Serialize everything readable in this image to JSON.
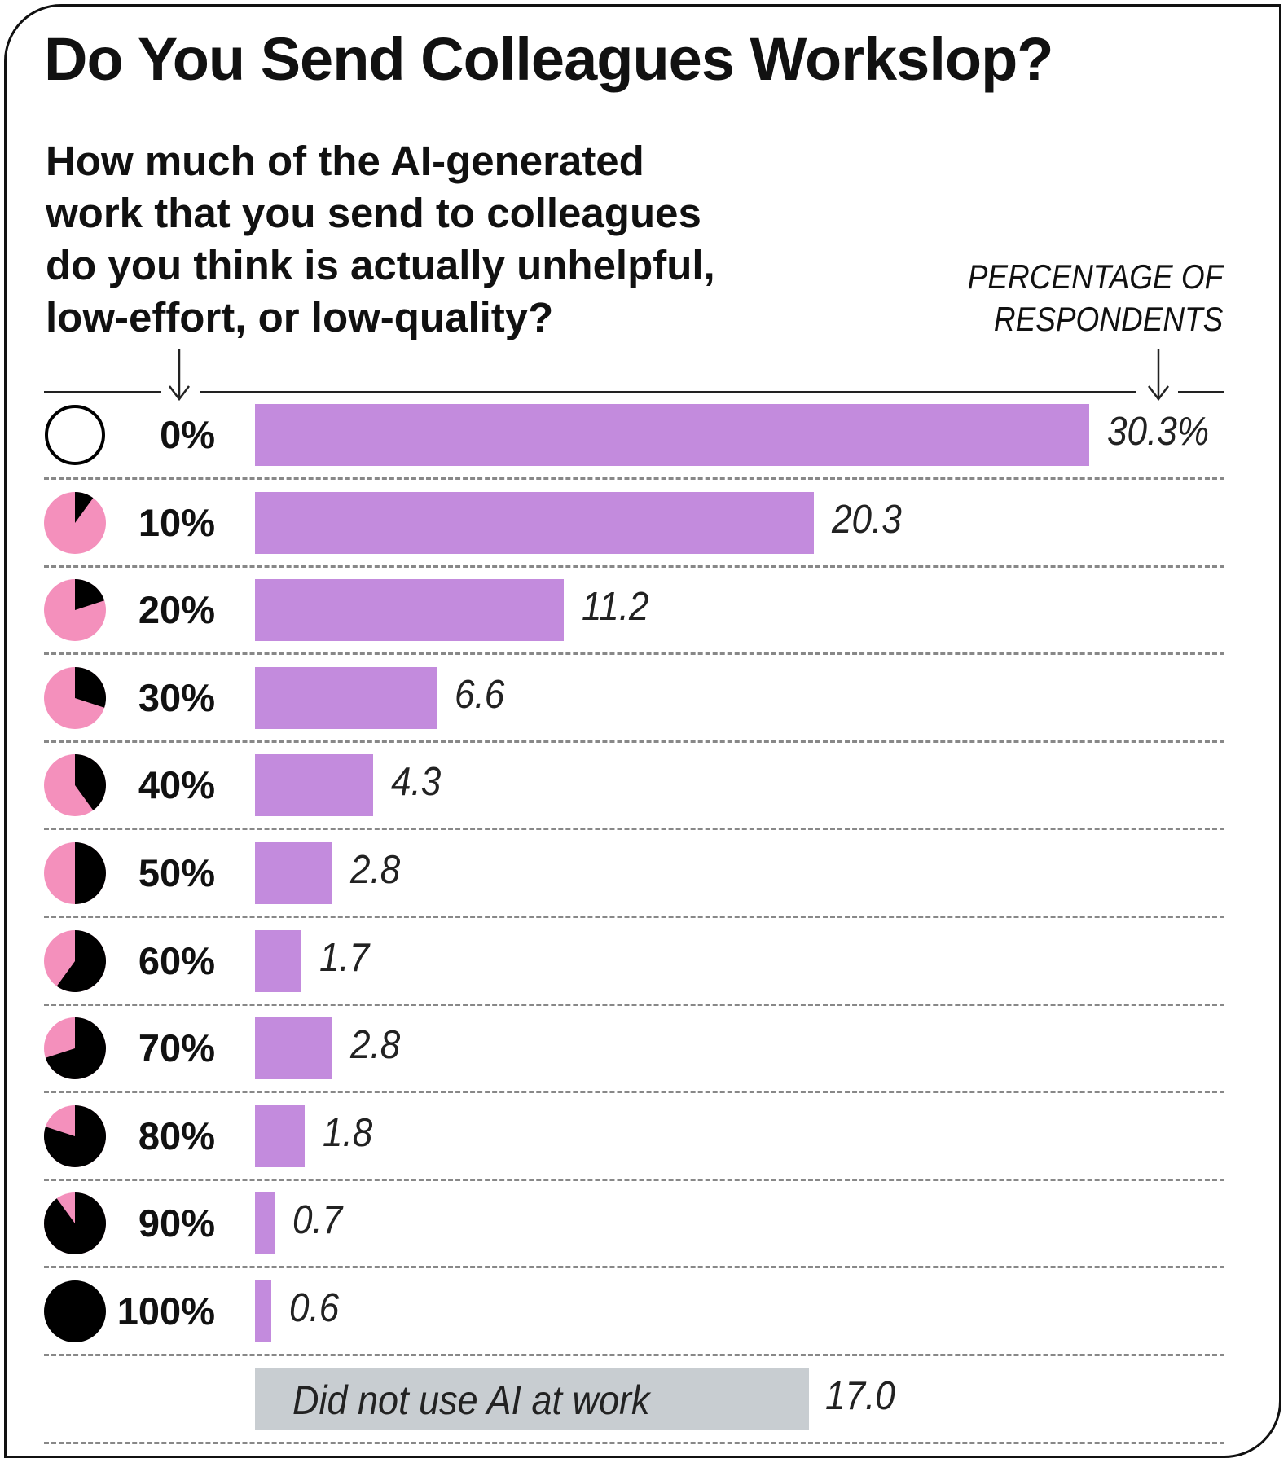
{
  "chart_data": {
    "type": "bar",
    "orientation": "horizontal",
    "title": "Do You Send Colleagues Workslop?",
    "subtitle_lines": [
      "How much of the AI-generated",
      "work that you send to colleagues",
      "do you think is actually unhelpful,",
      "low-effort, or low-quality?"
    ],
    "value_axis_label_lines": [
      "PERCENTAGE OF",
      "RESPONDENTS"
    ],
    "categories": [
      "0%",
      "10%",
      "20%",
      "30%",
      "40%",
      "50%",
      "60%",
      "70%",
      "80%",
      "90%",
      "100%"
    ],
    "category_fractions": [
      0,
      0.1,
      0.2,
      0.3,
      0.4,
      0.5,
      0.6,
      0.7,
      0.8,
      0.9,
      1.0
    ],
    "values": [
      30.3,
      20.3,
      11.2,
      6.6,
      4.3,
      2.8,
      1.7,
      2.8,
      1.8,
      0.7,
      0.6
    ],
    "value_labels": [
      "30.3%",
      "20.3",
      "11.2",
      "6.6",
      "4.3",
      "2.8",
      "1.7",
      "2.8",
      "1.8",
      "0.7",
      "0.6"
    ],
    "extra": {
      "label": "Did not use AI at work",
      "value": 17.0,
      "value_label": "17.0"
    },
    "colors": {
      "bar": "#c38bdd",
      "pie_fill": "#f490bc",
      "pie_wedge": "#000000",
      "extra_bar": "#c8cdd1"
    }
  }
}
